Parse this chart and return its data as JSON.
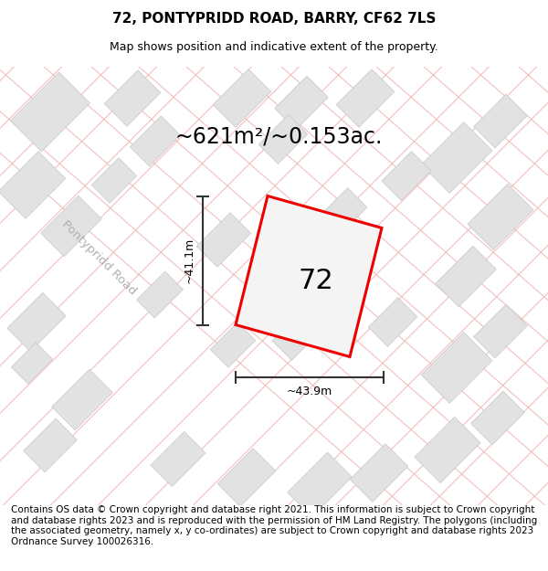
{
  "title": "72, PONTYPRIDD ROAD, BARRY, CF62 7LS",
  "subtitle": "Map shows position and indicative extent of the property.",
  "area_label": "~621m²/~0.153ac.",
  "width_label": "~43.9m",
  "height_label": "~41.1m",
  "number_label": "72",
  "road_label": "Pontypridd Road",
  "footer_text": "Contains OS data © Crown copyright and database right 2021. This information is subject to Crown copyright and database rights 2023 and is reproduced with the permission of HM Land Registry. The polygons (including the associated geometry, namely x, y co-ordinates) are subject to Crown copyright and database rights 2023 Ordnance Survey 100026316.",
  "bg_color": "#f0f0f0",
  "block_color_light": "#e2e2e2",
  "block_color_stroke": "#c8c8c8",
  "road_line_color": "#f0b8b8",
  "highlight_color": "#ee0000",
  "dim_line_color": "#333333",
  "title_fontsize": 11,
  "subtitle_fontsize": 9,
  "area_fontsize": 17,
  "label_fontsize": 9,
  "footer_fontsize": 7.5
}
